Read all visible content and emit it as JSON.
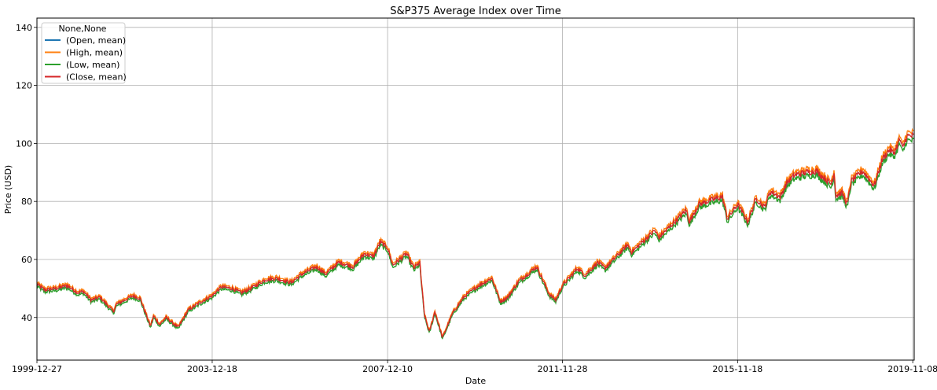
{
  "chart_data": {
    "type": "line",
    "title": "S&P375 Average Index over Time",
    "xlabel": "Date",
    "ylabel": "Price (USD)",
    "x_range": [
      "1999-12-27",
      "2019-11-20"
    ],
    "ylim": [
      25.3,
      143.2
    ],
    "xticks": [
      "1999-12-27",
      "2003-12-18",
      "2007-12-10",
      "2011-11-28",
      "2015-11-18",
      "2019-11-08"
    ],
    "yticks": [
      40,
      60,
      80,
      100,
      120,
      140
    ],
    "grid": true,
    "legend": {
      "title": "None,None",
      "location": "upper-left",
      "entries": [
        "(Open, mean)",
        "(High, mean)",
        "(Low, mean)",
        "(Close, mean)"
      ]
    },
    "colors": {
      "open": "#1f77b4",
      "high": "#ff7f0e",
      "low": "#2ca02c",
      "close": "#d62728"
    },
    "series": [
      {
        "name": "(Close, mean)",
        "points": [
          [
            "1999-12-27",
            51.5
          ],
          [
            "2000-03-01",
            49.5
          ],
          [
            "2000-06-01",
            50.0
          ],
          [
            "2000-09-01",
            51.0
          ],
          [
            "2000-12-01",
            48.5
          ],
          [
            "2001-01-15",
            49.0
          ],
          [
            "2001-03-20",
            46.0
          ],
          [
            "2001-06-01",
            47.0
          ],
          [
            "2001-09-21",
            42.0
          ],
          [
            "2001-10-15",
            44.5
          ],
          [
            "2002-03-01",
            47.5
          ],
          [
            "2002-05-01",
            46.5
          ],
          [
            "2002-07-24",
            37.0
          ],
          [
            "2002-08-20",
            40.5
          ],
          [
            "2002-10-09",
            37.5
          ],
          [
            "2002-12-01",
            40.0
          ],
          [
            "2003-03-11",
            36.5
          ],
          [
            "2003-06-01",
            42.5
          ],
          [
            "2003-09-01",
            45.0
          ],
          [
            "2003-12-18",
            47.5
          ],
          [
            "2004-03-01",
            50.5
          ],
          [
            "2004-06-01",
            50.0
          ],
          [
            "2004-08-15",
            48.5
          ],
          [
            "2004-11-01",
            50.0
          ],
          [
            "2005-03-01",
            53.0
          ],
          [
            "2005-06-01",
            53.5
          ],
          [
            "2005-10-01",
            52.0
          ],
          [
            "2006-01-01",
            55.0
          ],
          [
            "2006-05-01",
            57.5
          ],
          [
            "2006-07-15",
            55.0
          ],
          [
            "2006-11-01",
            59.0
          ],
          [
            "2007-03-01",
            57.5
          ],
          [
            "2007-06-01",
            62.0
          ],
          [
            "2007-08-15",
            61.0
          ],
          [
            "2007-10-10",
            66.0
          ],
          [
            "2007-12-10",
            64.0
          ],
          [
            "2008-01-22",
            58.0
          ],
          [
            "2008-05-15",
            62.0
          ],
          [
            "2008-07-15",
            57.0
          ],
          [
            "2008-09-01",
            59.0
          ],
          [
            "2008-10-10",
            41.0
          ],
          [
            "2008-11-20",
            35.0
          ],
          [
            "2009-01-05",
            42.0
          ],
          [
            "2009-03-09",
            33.0
          ],
          [
            "2009-06-01",
            41.5
          ],
          [
            "2009-09-01",
            47.0
          ],
          [
            "2010-01-01",
            51.0
          ],
          [
            "2010-04-23",
            53.5
          ],
          [
            "2010-07-01",
            45.5
          ],
          [
            "2010-09-01",
            47.0
          ],
          [
            "2010-12-01",
            52.5
          ],
          [
            "2011-04-29",
            57.5
          ],
          [
            "2011-08-10",
            48.0
          ],
          [
            "2011-10-03",
            46.0
          ],
          [
            "2011-11-28",
            51.0
          ],
          [
            "2012-04-01",
            57.0
          ],
          [
            "2012-06-01",
            54.5
          ],
          [
            "2012-09-15",
            59.0
          ],
          [
            "2012-11-15",
            57.0
          ],
          [
            "2013-05-21",
            65.0
          ],
          [
            "2013-06-24",
            62.5
          ],
          [
            "2013-12-31",
            70.0
          ],
          [
            "2014-02-03",
            67.5
          ],
          [
            "2014-09-19",
            77.0
          ],
          [
            "2014-10-15",
            73.0
          ],
          [
            "2014-12-31",
            79.0
          ],
          [
            "2015-05-21",
            81.0
          ],
          [
            "2015-07-15",
            81.5
          ],
          [
            "2015-08-25",
            74.0
          ],
          [
            "2015-11-18",
            79.0
          ],
          [
            "2016-02-11",
            73.0
          ],
          [
            "2016-04-20",
            81.0
          ],
          [
            "2016-06-27",
            78.0
          ],
          [
            "2016-08-15",
            83.5
          ],
          [
            "2016-11-04",
            81.5
          ],
          [
            "2016-12-31",
            86.5
          ],
          [
            "2017-03-01",
            89.0
          ],
          [
            "2017-06-01",
            90.0
          ],
          [
            "2017-09-01",
            90.5
          ],
          [
            "2017-12-31",
            86.0
          ],
          [
            "2018-01-26",
            90.0
          ],
          [
            "2018-02-08",
            82.0
          ],
          [
            "2018-04-01",
            83.0
          ],
          [
            "2018-05-15",
            79.0
          ],
          [
            "2018-06-15",
            87.0
          ],
          [
            "2018-09-20",
            90.5
          ],
          [
            "2018-12-24",
            85.5
          ],
          [
            "2019-03-01",
            94.5
          ],
          [
            "2019-04-30",
            98.0
          ],
          [
            "2019-06-03",
            96.5
          ],
          [
            "2019-07-26",
            101.5
          ],
          [
            "2019-08-15",
            98.0
          ],
          [
            "2019-09-20",
            102.5
          ],
          [
            "2019-11-20",
            102.5
          ]
        ]
      }
    ]
  }
}
